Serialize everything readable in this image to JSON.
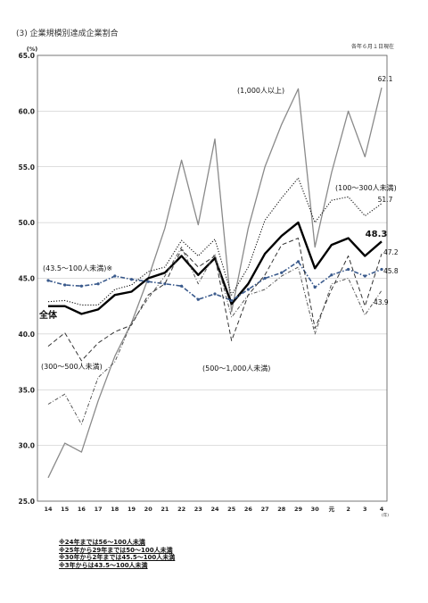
{
  "title": "(3) 企業規模別達成企業割合",
  "date_note": "各年６月１日現在",
  "footnotes": [
    "※24年までは56～100人未満",
    "※25年から29年までは50～100人未満",
    "※30年から2年までは45.5～100人未満",
    "※3年からは43.5～100人未満"
  ],
  "chart_data": {
    "type": "line",
    "ylabel": "(%)",
    "xlabel": "(年)",
    "ylim": [
      25.0,
      65.0
    ],
    "yticks": [
      "25.0",
      "30.0",
      "35.0",
      "40.0",
      "45.0",
      "50.0",
      "55.0",
      "60.0",
      "65.0"
    ],
    "grid": "horizontal",
    "categories": [
      "14",
      "15",
      "16",
      "17",
      "18",
      "19",
      "20",
      "21",
      "22",
      "23",
      "24",
      "25",
      "26",
      "27",
      "28",
      "29",
      "30",
      "元",
      "2",
      "3",
      "4"
    ],
    "series": [
      {
        "name": "(1,000人以上)",
        "style": "gray-solid",
        "color": "#8a8a8a",
        "values": [
          27.1,
          30.2,
          29.4,
          34.0,
          38.0,
          41.0,
          45.0,
          49.5,
          55.6,
          49.8,
          57.5,
          42.0,
          49.5,
          55.0,
          58.8,
          62.0,
          47.8,
          54.5,
          60.0,
          55.9,
          62.1
        ]
      },
      {
        "name": "(100～300人未満)",
        "style": "dotted",
        "color": "#111111",
        "values": [
          42.9,
          43.0,
          42.6,
          42.6,
          44.0,
          44.4,
          45.6,
          46.0,
          48.4,
          47.0,
          48.5,
          43.5,
          46.0,
          50.2,
          52.2,
          54.0,
          50.0,
          52.0,
          52.3,
          50.6,
          51.7
        ]
      },
      {
        "name": "全体",
        "style": "thick-solid",
        "color": "#000000",
        "values": [
          42.5,
          42.5,
          41.8,
          42.2,
          43.5,
          43.8,
          45.0,
          45.5,
          47.0,
          45.3,
          46.8,
          42.7,
          44.5,
          47.2,
          48.8,
          50.0,
          45.9,
          48.0,
          48.6,
          47.0,
          48.3
        ]
      },
      {
        "name": "(43.5～100人未満)※",
        "style": "blue-dashdot",
        "color": "#3a5a8c",
        "values": [
          44.8,
          44.4,
          44.3,
          44.5,
          45.2,
          44.9,
          44.7,
          44.5,
          44.3,
          43.1,
          43.6,
          43.0,
          44.0,
          45.0,
          45.5,
          46.5,
          44.2,
          45.3,
          45.8,
          45.2,
          45.8
        ]
      },
      {
        "name": "(500～1,000人未満)",
        "style": "long-dash",
        "color": "#333333",
        "values": [
          38.9,
          40.1,
          37.6,
          39.2,
          40.2,
          40.8,
          43.5,
          44.5,
          47.6,
          46.0,
          47.0,
          39.4,
          43.5,
          45.3,
          48.0,
          48.6,
          40.5,
          44.0,
          47.0,
          42.5,
          47.2
        ]
      },
      {
        "name": "(300～500人未満)",
        "style": "dash-dot",
        "color": "#555555",
        "values": [
          33.7,
          34.6,
          31.9,
          36.1,
          37.5,
          41.0,
          43.2,
          45.2,
          47.8,
          44.5,
          47.2,
          41.5,
          43.5,
          44.0,
          45.2,
          46.0,
          40.0,
          44.5,
          45.0,
          41.7,
          43.9
        ]
      }
    ],
    "annotations": {
      "end_values": [
        "62.1",
        "51.7",
        "48.3",
        "47.2",
        "45.8",
        "43.9"
      ],
      "series_labels": [
        "(1,000人以上)",
        "(100～300人未満)",
        "(43.5～100人未満)※",
        "全体",
        "(300～500人未満)",
        "(500～1,000人未満)"
      ]
    }
  }
}
